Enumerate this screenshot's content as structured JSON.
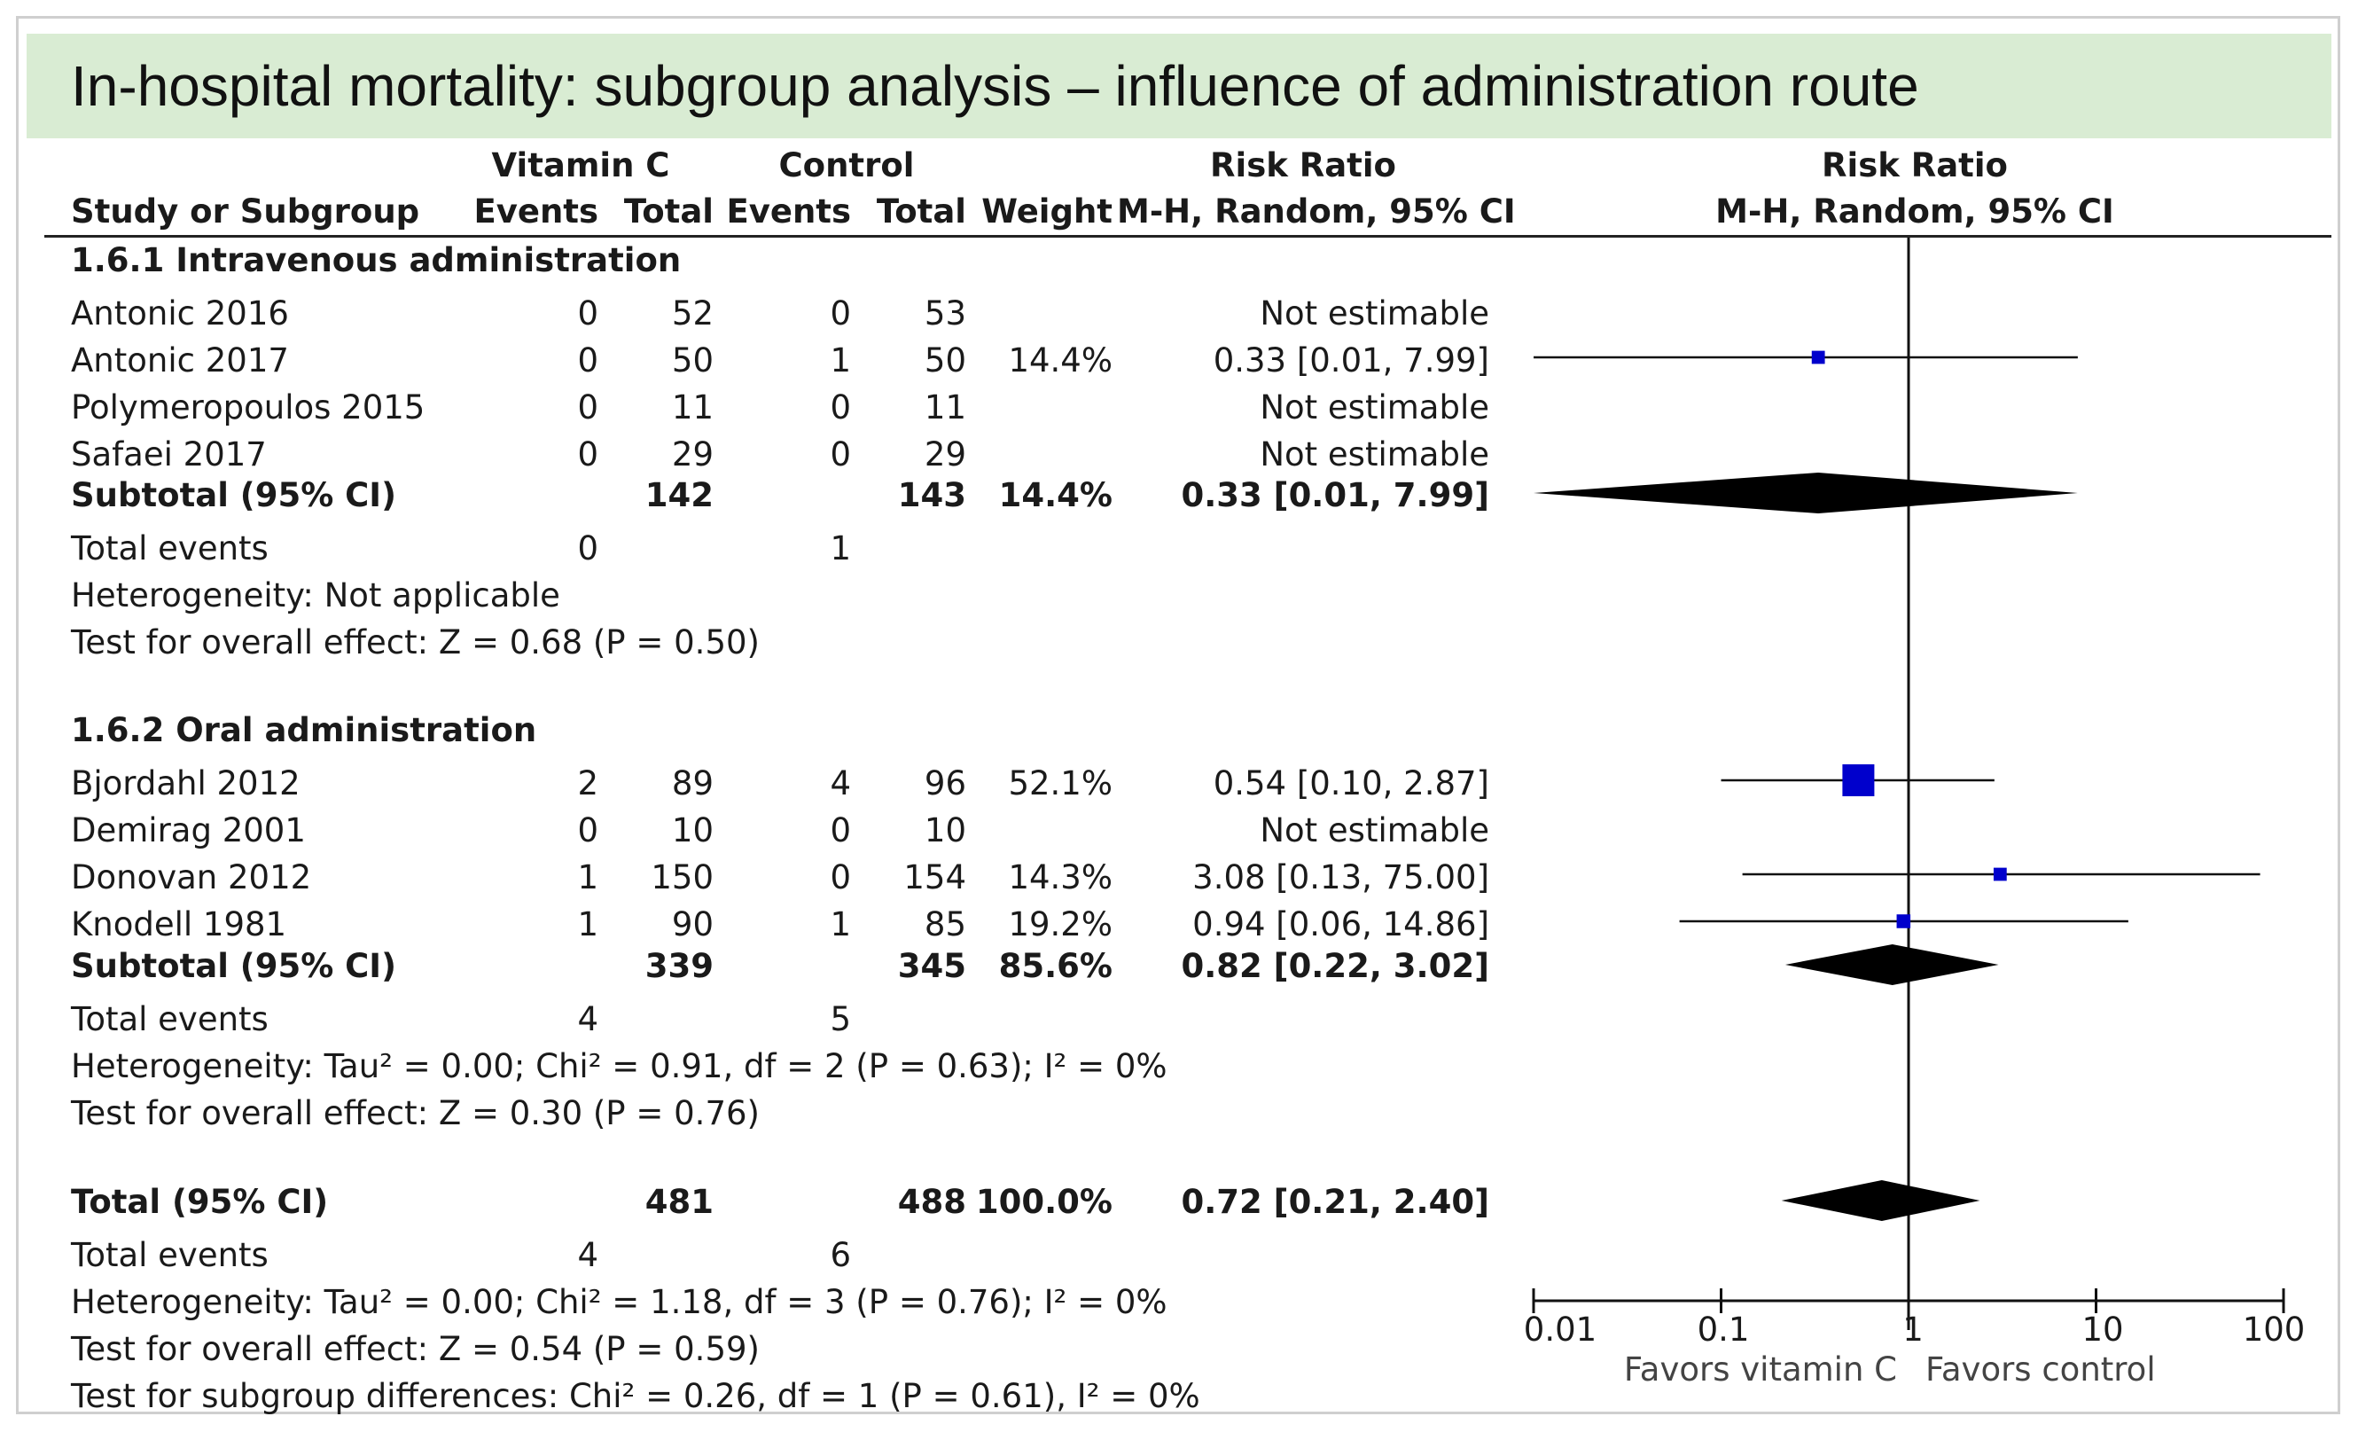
{
  "slide_title": "In-hospital mortality: subgroup analysis – influence of administration route",
  "header": {
    "group_vitc": "Vitamin C",
    "group_control": "Control",
    "rr_col_title": "Risk Ratio",
    "study_col": "Study or Subgroup",
    "events": "Events",
    "total": "Total",
    "weight": "Weight",
    "method": "M-H, Random, 95% CI",
    "plot_title": "Risk Ratio",
    "plot_method": "M-H, Random, 95% CI"
  },
  "subgroups": [
    {
      "title": "1.6.1 Intravenous administration",
      "studies": [
        {
          "name": "Antonic 2016",
          "vc_events": "0",
          "vc_total": "52",
          "ct_events": "0",
          "ct_total": "53",
          "weight": "",
          "ci": "Not estimable"
        },
        {
          "name": "Antonic 2017",
          "vc_events": "0",
          "vc_total": "50",
          "ct_events": "1",
          "ct_total": "50",
          "weight": "14.4%",
          "ci": "0.33 [0.01, 7.99]"
        },
        {
          "name": "Polymeropoulos 2015",
          "vc_events": "0",
          "vc_total": "11",
          "ct_events": "0",
          "ct_total": "11",
          "weight": "",
          "ci": "Not estimable"
        },
        {
          "name": "Safaei 2017",
          "vc_events": "0",
          "vc_total": "29",
          "ct_events": "0",
          "ct_total": "29",
          "weight": "",
          "ci": "Not estimable"
        }
      ],
      "subtotal": {
        "label": "Subtotal (95% CI)",
        "vc_total": "142",
        "ct_total": "143",
        "weight": "14.4%",
        "ci": "0.33 [0.01, 7.99]"
      },
      "total_events": {
        "label": "Total events",
        "vc": "0",
        "ct": "1"
      },
      "heterogeneity": "Heterogeneity: Not applicable",
      "overall_effect": "Test for overall effect: Z = 0.68 (P = 0.50)"
    },
    {
      "title": "1.6.2 Oral administration",
      "studies": [
        {
          "name": "Bjordahl 2012",
          "vc_events": "2",
          "vc_total": "89",
          "ct_events": "4",
          "ct_total": "96",
          "weight": "52.1%",
          "ci": "0.54 [0.10, 2.87]"
        },
        {
          "name": "Demirag 2001",
          "vc_events": "0",
          "vc_total": "10",
          "ct_events": "0",
          "ct_total": "10",
          "weight": "",
          "ci": "Not estimable"
        },
        {
          "name": "Donovan 2012",
          "vc_events": "1",
          "vc_total": "150",
          "ct_events": "0",
          "ct_total": "154",
          "weight": "14.3%",
          "ci": "3.08 [0.13, 75.00]"
        },
        {
          "name": "Knodell 1981",
          "vc_events": "1",
          "vc_total": "90",
          "ct_events": "1",
          "ct_total": "85",
          "weight": "19.2%",
          "ci": "0.94 [0.06, 14.86]"
        }
      ],
      "subtotal": {
        "label": "Subtotal (95% CI)",
        "vc_total": "339",
        "ct_total": "345",
        "weight": "85.6%",
        "ci": "0.82 [0.22, 3.02]"
      },
      "total_events": {
        "label": "Total events",
        "vc": "4",
        "ct": "5"
      },
      "heterogeneity": "Heterogeneity: Tau² = 0.00; Chi² = 0.91, df = 2 (P = 0.63); I² = 0%",
      "overall_effect": "Test for overall effect: Z = 0.30 (P = 0.76)"
    }
  ],
  "overall": {
    "label": "Total (95% CI)",
    "vc_total": "481",
    "ct_total": "488",
    "weight": "100.0%",
    "ci": "0.72 [0.21, 2.40]",
    "total_events": {
      "label": "Total events",
      "vc": "4",
      "ct": "6"
    },
    "heterogeneity": "Heterogeneity: Tau² = 0.00; Chi² = 1.18, df = 3 (P = 0.76); I² = 0%",
    "overall_effect": "Test for overall effect: Z = 0.54 (P = 0.59)",
    "subgroup_diff": "Test for subgroup differences: Chi² = 0.26, df = 1 (P = 0.61), I² = 0%"
  },
  "chart_data": {
    "type": "forest",
    "scale": "log",
    "xlim": [
      0.01,
      100
    ],
    "ticks": [
      "0.01",
      "0.1",
      "1",
      "10",
      "100"
    ],
    "tick_values": [
      0.01,
      0.1,
      1,
      10,
      100
    ],
    "favors_left": "Favors vitamin C",
    "favors_right": "Favors control",
    "studies": [
      {
        "name": "Antonic 2017",
        "rr": 0.33,
        "lo": 0.01,
        "hi": 7.99,
        "weight": 14.4
      },
      {
        "name": "Bjordahl 2012",
        "rr": 0.54,
        "lo": 0.1,
        "hi": 2.87,
        "weight": 52.1
      },
      {
        "name": "Donovan 2012",
        "rr": 3.08,
        "lo": 0.13,
        "hi": 75.0,
        "weight": 14.3
      },
      {
        "name": "Knodell 1981",
        "rr": 0.94,
        "lo": 0.06,
        "hi": 14.86,
        "weight": 19.2
      }
    ],
    "diamonds": [
      {
        "name": "Subtotal 1.6.1",
        "rr": 0.33,
        "lo": 0.01,
        "hi": 7.99
      },
      {
        "name": "Subtotal 1.6.2",
        "rr": 0.82,
        "lo": 0.22,
        "hi": 3.02
      },
      {
        "name": "Total",
        "rr": 0.72,
        "lo": 0.21,
        "hi": 2.4
      }
    ],
    "marker_color": "#0000cc",
    "diamond_color": "#000000"
  }
}
